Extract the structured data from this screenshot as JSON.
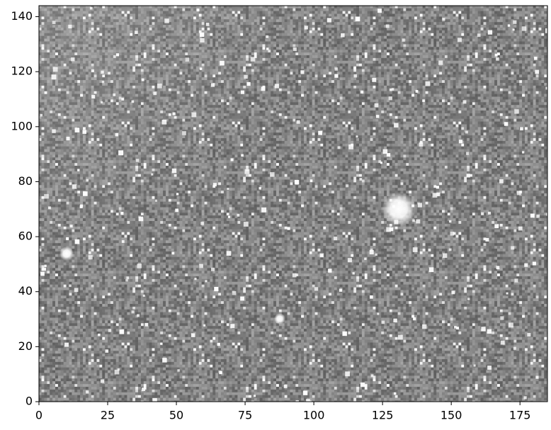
{
  "chart_data": {
    "type": "image",
    "xlim": [
      0,
      185
    ],
    "ylim": [
      0,
      144
    ],
    "xticks": [
      0,
      25,
      50,
      75,
      100,
      125,
      150,
      175
    ],
    "yticks": [
      0,
      20,
      40,
      60,
      80,
      100,
      120,
      140
    ]
  }
}
